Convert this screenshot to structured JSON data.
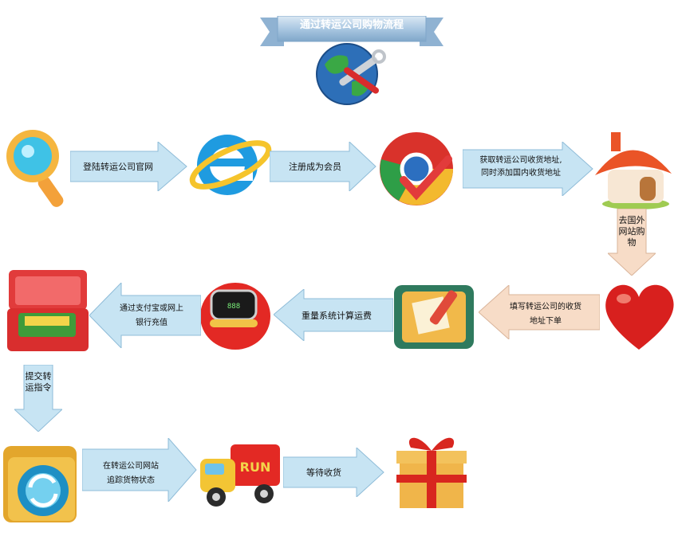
{
  "title": "通过转运公司购物流程",
  "steps": [
    {
      "label": "登陆转运公司官网"
    },
    {
      "label": "注册成为会员"
    },
    {
      "label_line1": "获取转运公司收货地址,",
      "label_line2": "同时添加国内收货地址"
    },
    {
      "label": "去国外网站购物"
    },
    {
      "label_line1": "填写转运公司的收货",
      "label_line2": "地址下单"
    },
    {
      "label": "重量系统计算运费"
    },
    {
      "label_line1": "通过支付宝或网上",
      "label_line2": "银行充值"
    },
    {
      "label": "提交转运指令"
    },
    {
      "label_line1": "在转运公司网站",
      "label_line2": "追踪货物状态"
    },
    {
      "label": "等待收货"
    }
  ],
  "icons": {
    "top": "globe-tools-icon",
    "row1": [
      "magnifier-icon",
      "internet-explorer-icon",
      "chrome-browser-icon",
      "house-icon"
    ],
    "row2": [
      "heart-icon",
      "clipboard-pen-icon",
      "scale-icon",
      "suitcase-money-icon"
    ],
    "row3": [
      "folder-refresh-icon",
      "truck-icon",
      "gift-box-icon"
    ],
    "truck_text": "RUN"
  },
  "colors": {
    "arrow_blue": "#c7e4f3",
    "arrow_blue_edge": "#6fa6c9",
    "arrow_orange": "#f7dcc7",
    "banner": "#aac8e2"
  }
}
